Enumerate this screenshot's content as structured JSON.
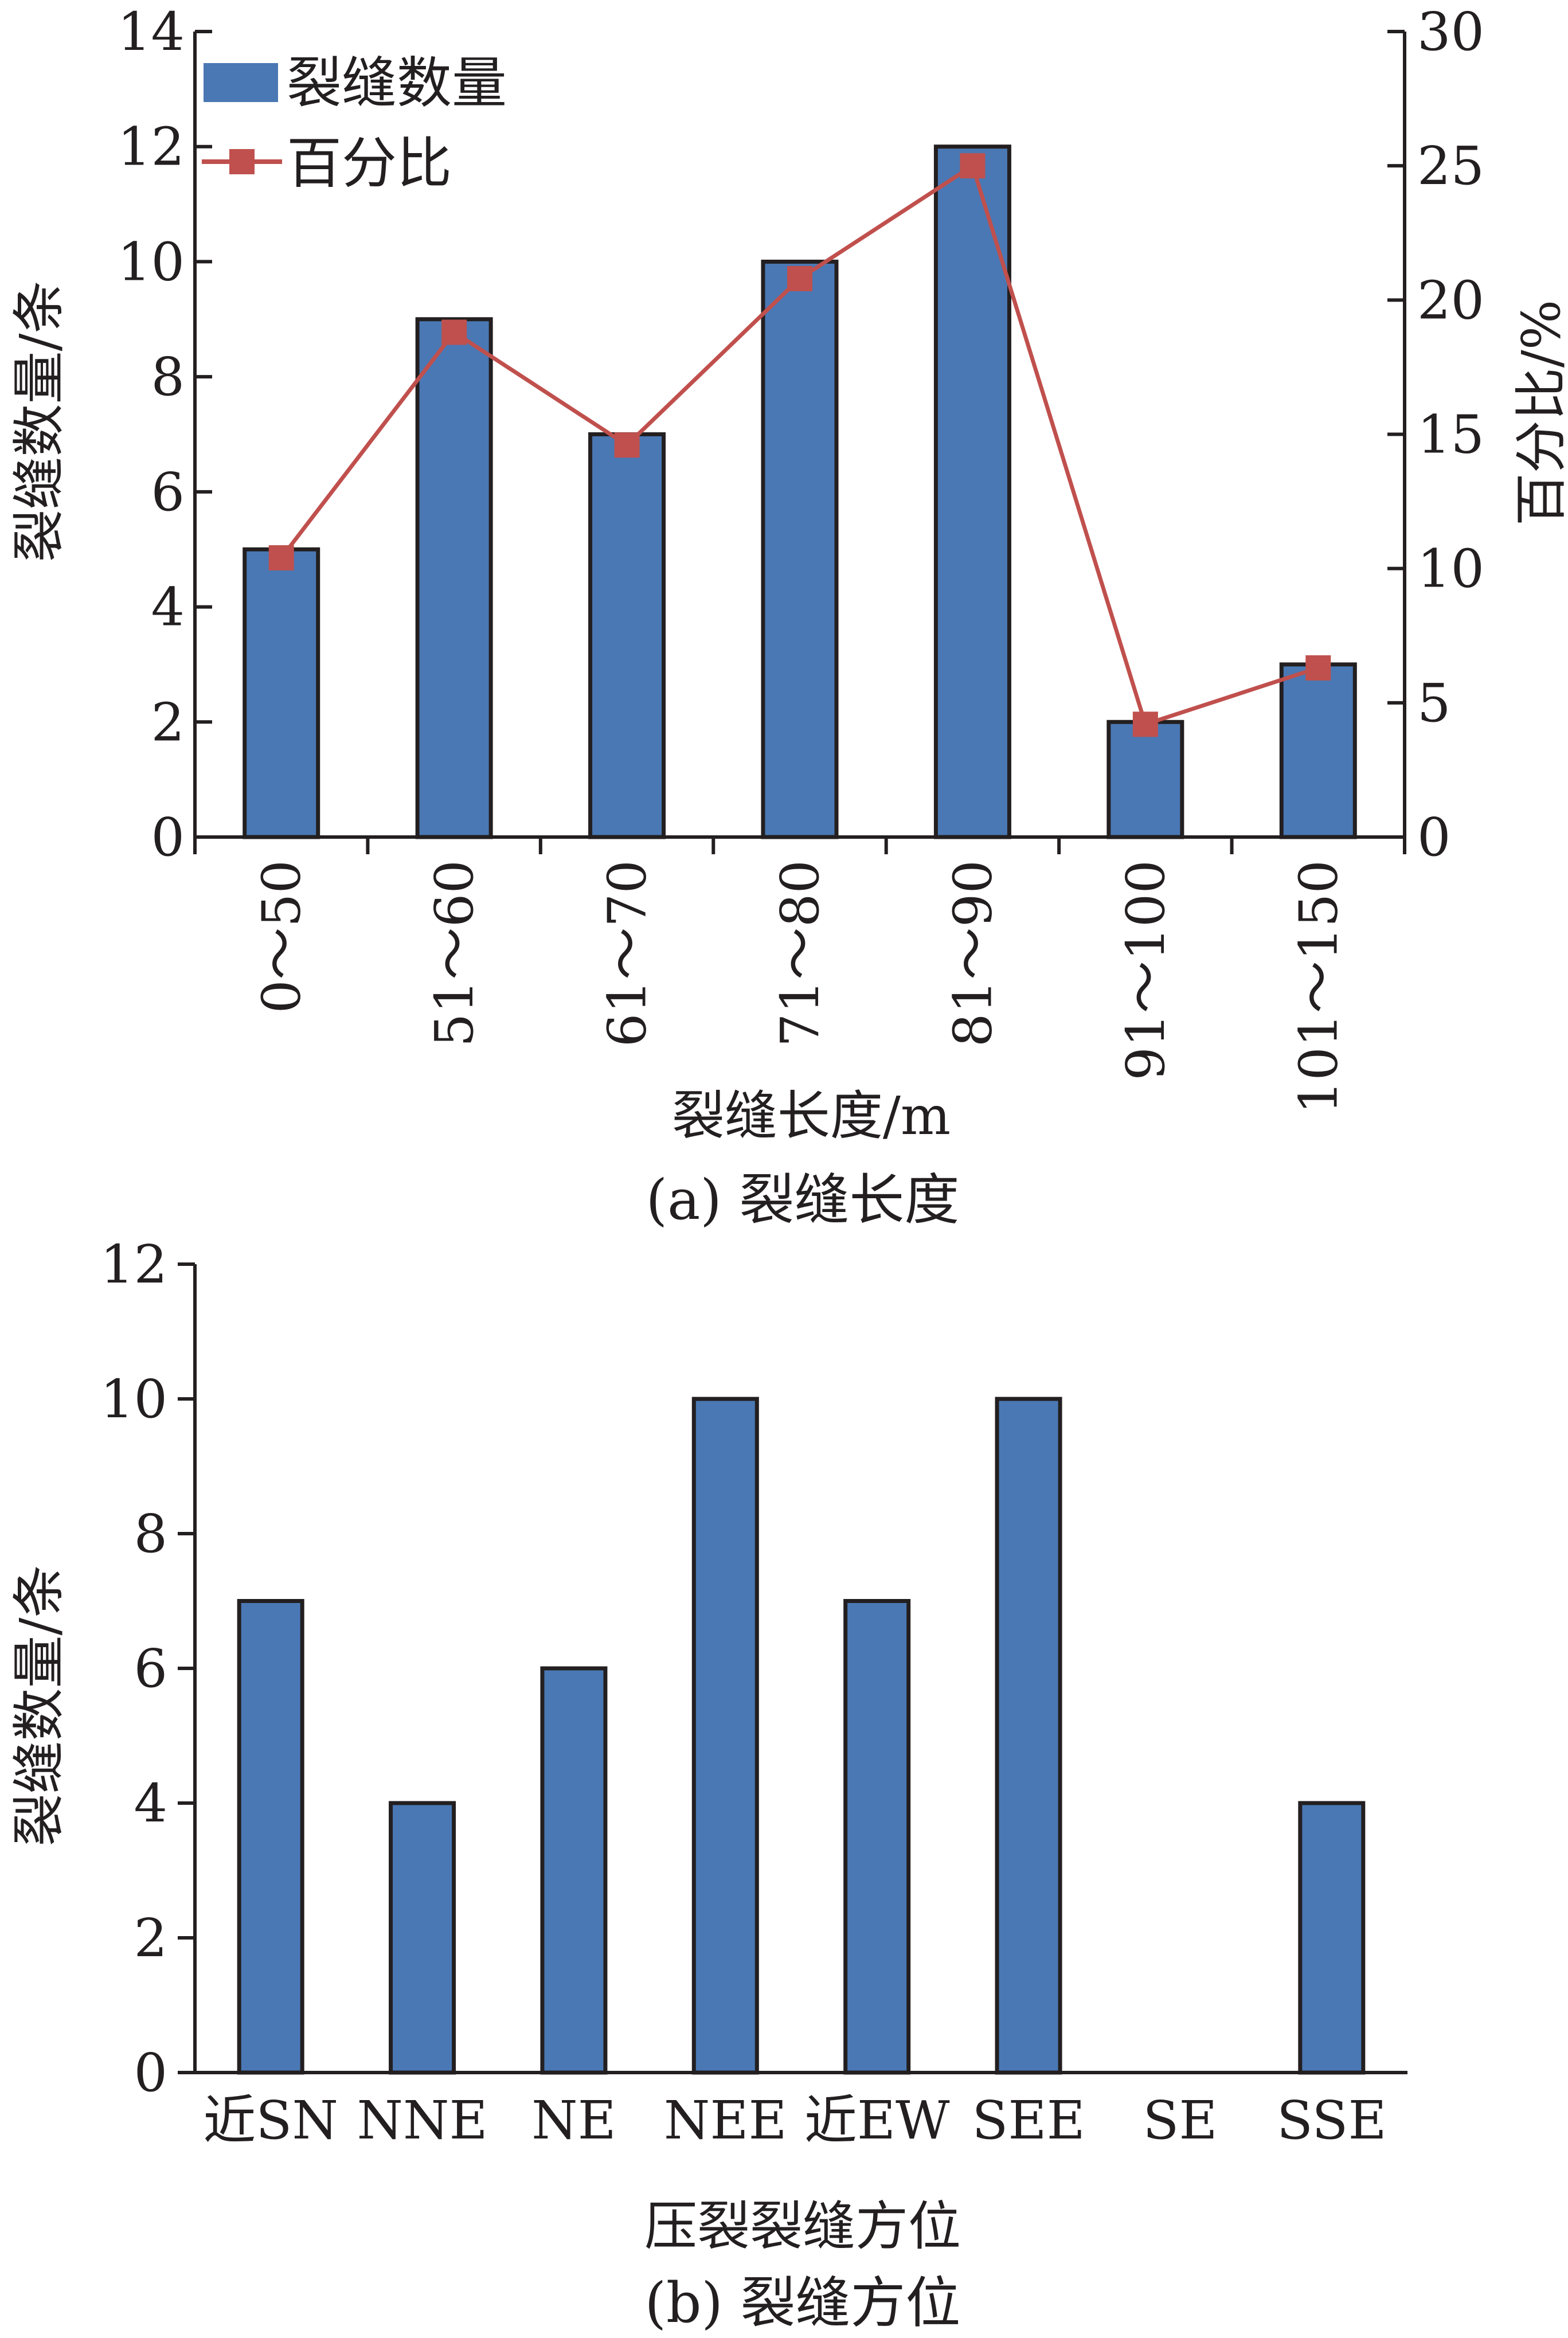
{
  "chart_data": [
    {
      "type": "bar",
      "title": "",
      "caption": "(a) 裂缝长度",
      "xlabel": "裂缝长度/m",
      "ylabel": "裂缝数量/条",
      "y2label": "百分比/%",
      "categories": [
        "0～50",
        "51～60",
        "61～70",
        "71～80",
        "81～90",
        "91～100",
        "101～150"
      ],
      "series": [
        {
          "name": "裂缝数量",
          "type": "bar",
          "axis": "left",
          "values": [
            5,
            9,
            7,
            10,
            12,
            2,
            3
          ]
        },
        {
          "name": "百分比",
          "type": "line",
          "axis": "right",
          "values": [
            10.4,
            18.8,
            14.6,
            20.8,
            25.0,
            4.2,
            6.3
          ]
        }
      ],
      "ylim": [
        0,
        14
      ],
      "yticks": [
        "0",
        "2",
        "4",
        "6",
        "8",
        "10",
        "12",
        "14"
      ],
      "y2lim": [
        0,
        30
      ],
      "y2ticks": [
        "0",
        "5",
        "10",
        "15",
        "20",
        "25",
        "30"
      ],
      "legend": "top-left",
      "grid": false,
      "colors": {
        "bar": "#4a78b4",
        "line": "#c0504d",
        "text": "#231f20"
      }
    },
    {
      "type": "bar",
      "title": "",
      "caption": "(b) 裂缝方位",
      "xlabel": "压裂裂缝方位",
      "ylabel": "裂缝数量/条",
      "categories": [
        "近SN",
        "NNE",
        "NE",
        "NEE",
        "近EW",
        "SEE",
        "SE",
        "SSE"
      ],
      "series": [
        {
          "name": "",
          "type": "bar",
          "values": [
            7,
            4,
            6,
            10,
            7,
            10,
            0,
            4
          ]
        }
      ],
      "ylim": [
        0,
        12
      ],
      "yticks": [
        "0",
        "2",
        "4",
        "6",
        "8",
        "10",
        "12"
      ],
      "grid": false,
      "colors": {
        "bar": "#4a78b4",
        "text": "#231f20"
      }
    }
  ]
}
